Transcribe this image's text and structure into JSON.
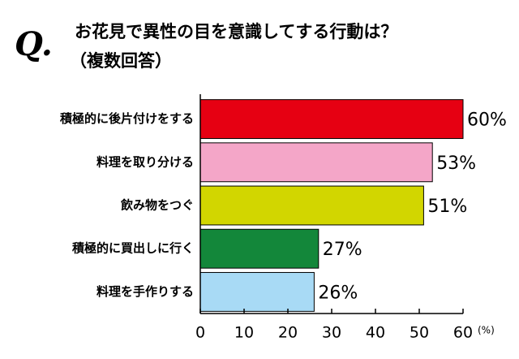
{
  "chart_data": {
    "type": "barh",
    "icon": "Q.",
    "title": "お花見で異性の目を意識してする行動は？",
    "subtitle": "（複数回答）",
    "categories": [
      "積極的に後片付けをする",
      "料理を取り分ける",
      "飲み物をつぐ",
      "積極的に買出しに行く",
      "料理を手作りする"
    ],
    "values": [
      60,
      53,
      51,
      27,
      26
    ],
    "value_labels": [
      "60%",
      "53%",
      "51%",
      "27%",
      "26%"
    ],
    "colors": [
      "#e60012",
      "#f4a6c8",
      "#d2d600",
      "#13873a",
      "#a8daf5"
    ],
    "xlim": [
      0,
      60
    ],
    "xticks": [
      0,
      10,
      20,
      30,
      40,
      50,
      60
    ],
    "xlabel": "(%)",
    "grid": false
  }
}
